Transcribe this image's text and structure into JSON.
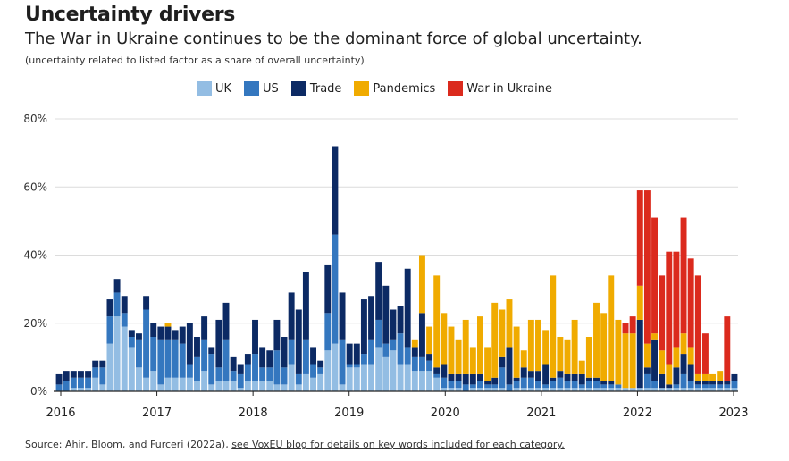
{
  "title": "Uncertainty drivers",
  "subtitle": "The War in Ukraine continues to be the dominant force of global uncertainty.",
  "note": "(uncertainty related to listed factor as a share of overall uncertainty)",
  "source_text": "Source: Ahir, Bloom, and Furceri (2022a), ",
  "source_link": "see VoxEU blog for details on key words included for each category.",
  "chart_data": {
    "type": "bar",
    "stacked": true,
    "legend_position": "top",
    "grid": true,
    "ylim": [
      0,
      80
    ],
    "yticks": [
      "0%",
      "20%",
      "40%",
      "60%",
      "80%"
    ],
    "xticks": [
      "2016",
      "2017",
      "2018",
      "2019",
      "2020",
      "2021",
      "2022",
      "2023"
    ],
    "x_range": [
      "2016-01",
      "2023-01"
    ],
    "series": [
      {
        "name": "UK",
        "color": "#93bde3",
        "values": [
          0,
          0,
          1,
          1,
          1,
          4,
          2,
          14,
          22,
          19,
          13,
          7,
          4,
          6,
          2,
          4,
          4,
          4,
          4,
          3,
          6,
          2,
          3,
          3,
          3,
          1,
          3,
          3,
          3,
          3,
          2,
          2,
          8,
          2,
          5,
          4,
          5,
          12,
          14,
          2,
          7,
          7,
          8,
          8,
          13,
          10,
          12,
          8,
          8,
          6,
          6,
          6,
          4,
          1,
          1,
          1,
          0,
          1,
          1,
          1,
          1,
          1,
          0,
          1,
          1,
          1,
          1,
          1,
          1,
          1,
          1,
          1,
          1,
          1,
          1,
          1,
          1,
          1,
          1,
          1,
          1,
          1,
          1,
          1,
          1,
          1,
          1,
          1,
          1,
          1,
          1,
          1,
          1,
          1
        ]
      },
      {
        "name": "US",
        "color": "#3477bf",
        "values": [
          2,
          3,
          3,
          3,
          3,
          3,
          5,
          8,
          7,
          4,
          3,
          8,
          20,
          10,
          13,
          11,
          11,
          10,
          4,
          7,
          9,
          9,
          4,
          12,
          3,
          4,
          5,
          8,
          4,
          4,
          10,
          5,
          7,
          3,
          10,
          4,
          2,
          11,
          32,
          13,
          1,
          1,
          3,
          7,
          8,
          4,
          3,
          9,
          5,
          4,
          4,
          3,
          1,
          3,
          2,
          2,
          2,
          1,
          2,
          1,
          1,
          6,
          2,
          2,
          3,
          3,
          2,
          1,
          2,
          3,
          2,
          2,
          1,
          2,
          2,
          1,
          1,
          1,
          0,
          0,
          0,
          4,
          2,
          0,
          0,
          1,
          4,
          2,
          1,
          1,
          1,
          1,
          1,
          2
        ]
      },
      {
        "name": "Trade",
        "color": "#0c2a64",
        "values": [
          3,
          3,
          2,
          2,
          2,
          2,
          2,
          5,
          4,
          5,
          2,
          2,
          4,
          4,
          4,
          4,
          3,
          5,
          12,
          6,
          7,
          2,
          14,
          11,
          4,
          3,
          3,
          10,
          6,
          5,
          9,
          9,
          14,
          19,
          20,
          5,
          2,
          14,
          26,
          14,
          6,
          6,
          16,
          13,
          17,
          17,
          9,
          8,
          23,
          3,
          13,
          2,
          2,
          4,
          2,
          2,
          3,
          3,
          2,
          1,
          2,
          3,
          11,
          1,
          3,
          2,
          3,
          6,
          1,
          2,
          2,
          2,
          3,
          1,
          1,
          1,
          1,
          0,
          0,
          0,
          20,
          2,
          12,
          4,
          1,
          5,
          6,
          5,
          1,
          1,
          1,
          1,
          1,
          2
        ]
      },
      {
        "name": "Pandemics",
        "color": "#f0ab00",
        "values": [
          0,
          0,
          0,
          0,
          0,
          0,
          0,
          0,
          0,
          0,
          0,
          0,
          0,
          0,
          0,
          1,
          0,
          0,
          0,
          0,
          0,
          0,
          0,
          0,
          0,
          0,
          0,
          0,
          0,
          0,
          0,
          0,
          0,
          0,
          0,
          0,
          0,
          0,
          0,
          0,
          0,
          0,
          0,
          0,
          0,
          0,
          0,
          0,
          0,
          2,
          17,
          8,
          27,
          15,
          14,
          10,
          16,
          8,
          17,
          10,
          22,
          14,
          14,
          15,
          5,
          15,
          15,
          10,
          30,
          10,
          10,
          16,
          4,
          12,
          22,
          20,
          31,
          19,
          16,
          16,
          10,
          7,
          2,
          7,
          6,
          6,
          6,
          5,
          2,
          2,
          2,
          3,
          0,
          0
        ]
      },
      {
        "name": "War in Ukraine",
        "color": "#db2a1d",
        "values": [
          0,
          0,
          0,
          0,
          0,
          0,
          0,
          0,
          0,
          0,
          0,
          0,
          0,
          0,
          0,
          0,
          0,
          0,
          0,
          0,
          0,
          0,
          0,
          0,
          0,
          0,
          0,
          0,
          0,
          0,
          0,
          0,
          0,
          0,
          0,
          0,
          0,
          0,
          0,
          0,
          0,
          0,
          0,
          0,
          0,
          0,
          0,
          0,
          0,
          0,
          0,
          0,
          0,
          0,
          0,
          0,
          0,
          0,
          0,
          0,
          0,
          0,
          0,
          0,
          0,
          0,
          0,
          0,
          0,
          0,
          0,
          0,
          0,
          0,
          0,
          0,
          0,
          0,
          3,
          5,
          28,
          45,
          34,
          22,
          33,
          28,
          34,
          26,
          29,
          12,
          0,
          0,
          19,
          0
        ]
      }
    ]
  }
}
